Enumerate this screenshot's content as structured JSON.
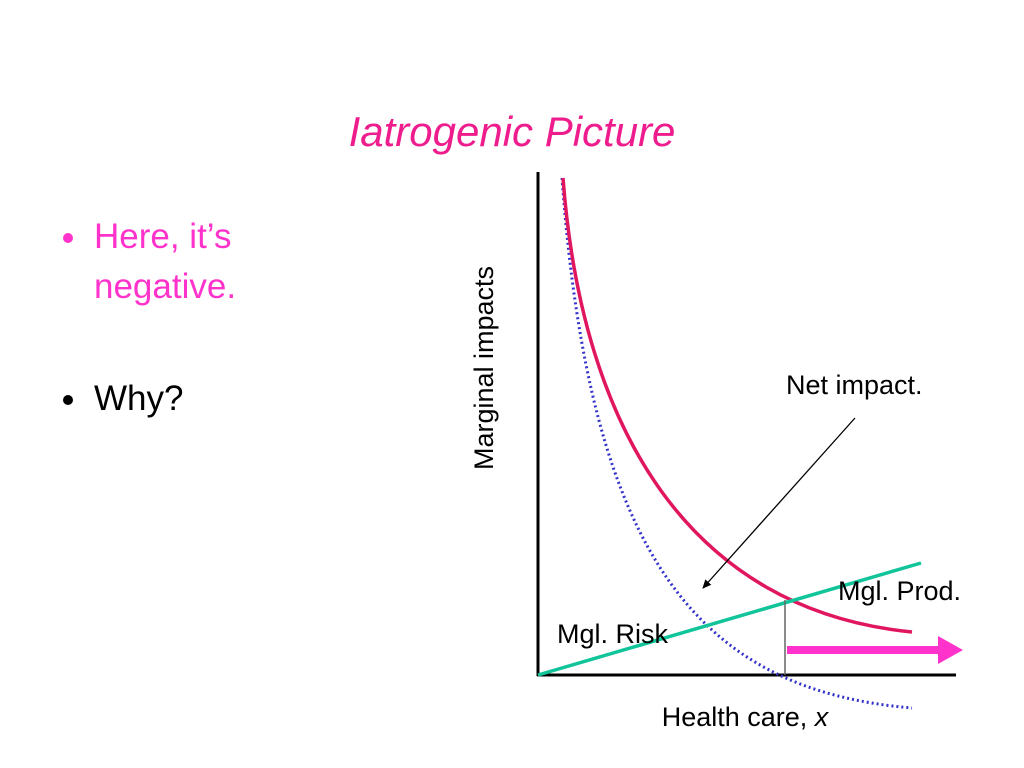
{
  "title": "Iatrogenic Picture",
  "bullets": [
    "Here, it’s negative.",
    "Why?"
  ],
  "diagram": {
    "y_axis_label": "Marginal impacts",
    "x_axis_label": "Health care,",
    "x_axis_variable": "x",
    "annotation": "Net impact.",
    "curve_labels": {
      "production": "Mgl. Prod.",
      "risk": "Mgl. Risk"
    }
  }
}
